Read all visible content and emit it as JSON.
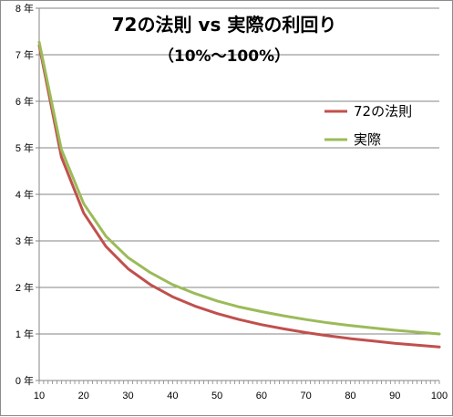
{
  "chart_data": {
    "type": "line",
    "title": "72の法則 vs 実際の利回り",
    "subtitle": "（10%～100%）",
    "xlabel": "",
    "ylabel": "",
    "x": [
      10,
      15,
      20,
      25,
      30,
      35,
      40,
      45,
      50,
      55,
      60,
      65,
      70,
      75,
      80,
      85,
      90,
      95,
      100
    ],
    "xticks": [
      10,
      20,
      30,
      40,
      50,
      60,
      70,
      80,
      90,
      100
    ],
    "xlim": [
      10,
      100
    ],
    "ylim": [
      0,
      8
    ],
    "yticks": [
      "0 年",
      "1 年",
      "2 年",
      "3 年",
      "4 年",
      "5 年",
      "6 年",
      "7 年",
      "8 年"
    ],
    "grid": true,
    "legend_position": "right",
    "series": [
      {
        "name": "72の法則",
        "color": "#c0504d",
        "values": [
          7.2,
          4.8,
          3.6,
          2.88,
          2.4,
          2.06,
          1.8,
          1.6,
          1.44,
          1.31,
          1.2,
          1.11,
          1.03,
          0.96,
          0.9,
          0.85,
          0.8,
          0.76,
          0.72
        ]
      },
      {
        "name": "実際",
        "color": "#9bbb59",
        "values": [
          7.27,
          4.96,
          3.8,
          3.1,
          2.64,
          2.32,
          2.06,
          1.87,
          1.71,
          1.58,
          1.48,
          1.39,
          1.31,
          1.24,
          1.18,
          1.13,
          1.08,
          1.04,
          1.0
        ]
      }
    ]
  }
}
